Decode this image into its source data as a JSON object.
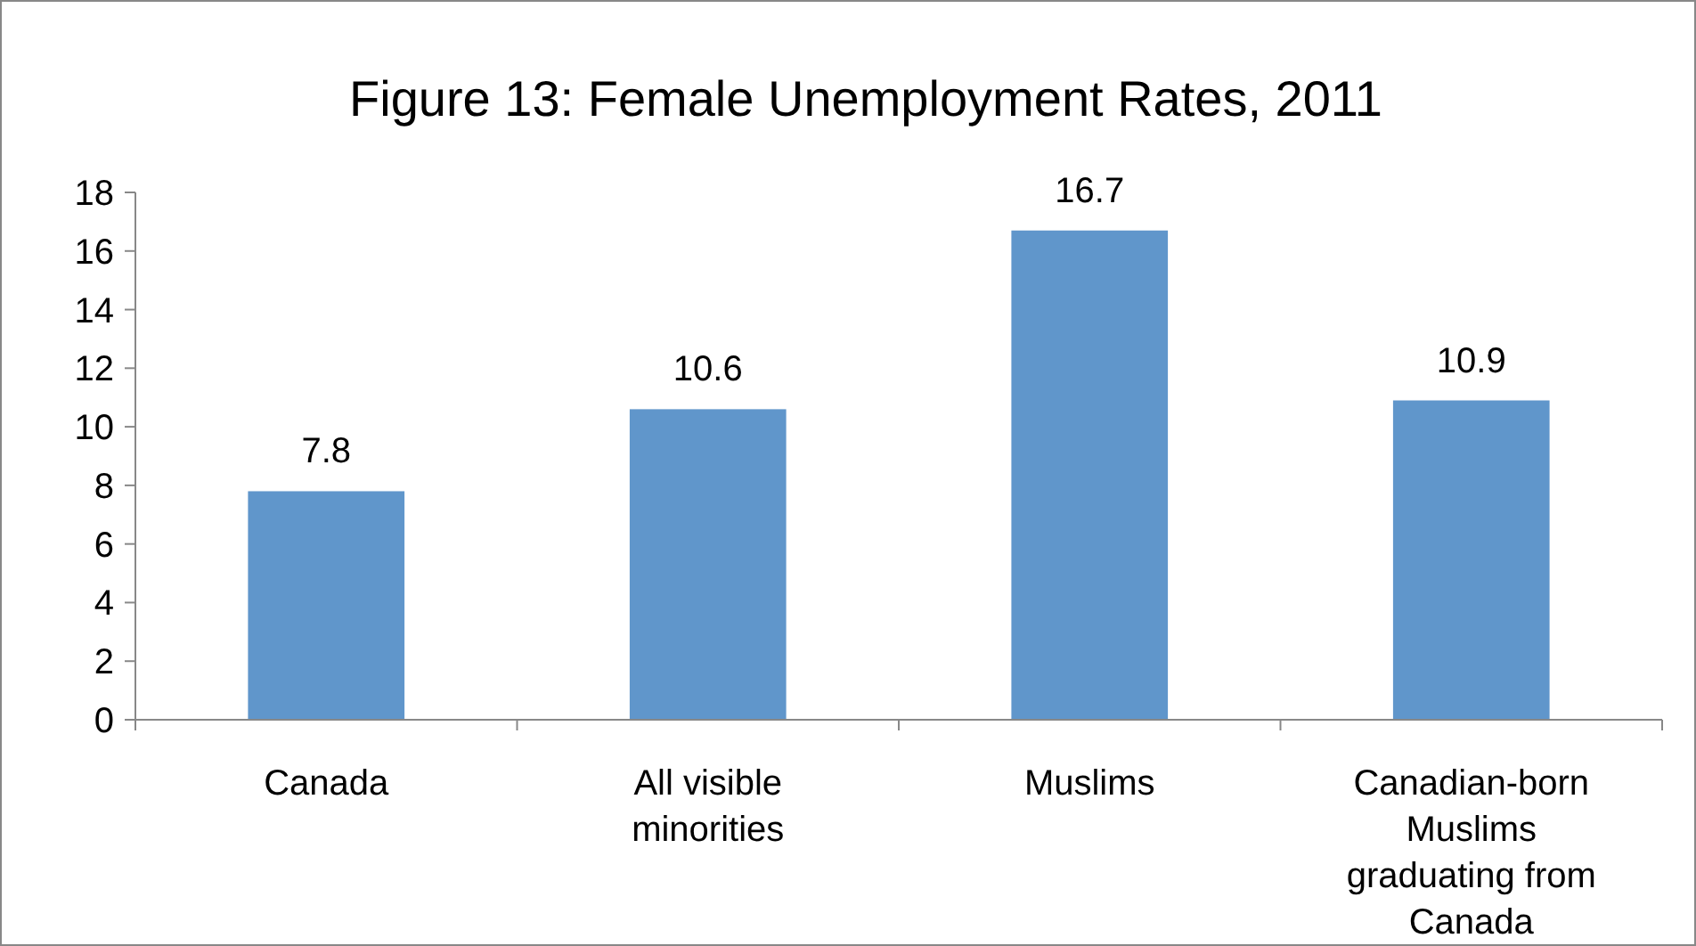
{
  "chart_data": {
    "type": "bar",
    "title": "Figure 13: Female Unemployment Rates, 2011",
    "categories": [
      "Canada",
      "All visible minorities",
      "Muslims",
      "Canadian-born Muslims graduating from Canada"
    ],
    "values": [
      7.8,
      10.6,
      16.7,
      10.9
    ],
    "color": "#6096cb",
    "ylim": [
      0,
      18
    ],
    "yticks": [
      0,
      2,
      4,
      6,
      8,
      10,
      12,
      14,
      16,
      18
    ],
    "grid": false,
    "data_labels": true
  }
}
